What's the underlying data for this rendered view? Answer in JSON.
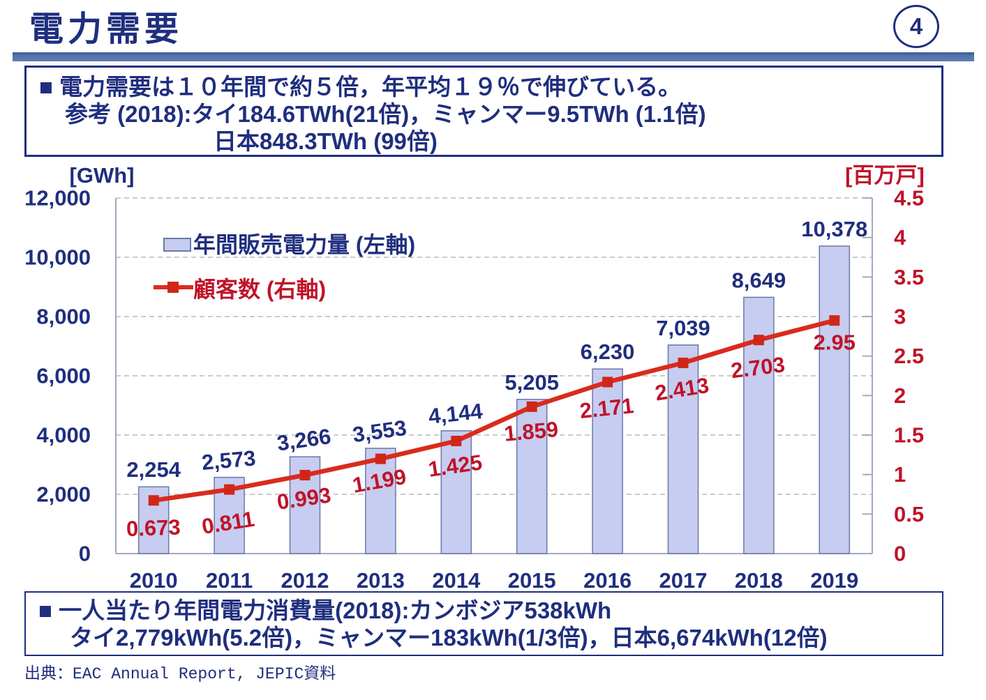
{
  "slide": {
    "title": "電力需要",
    "page_number": "4",
    "highlight_box": {
      "line1": "■ 電力需要は１０年間で約５倍，年平均１９％で伸びている。",
      "line2": "参考 (2018):タイ184.6TWh(21倍)，ミャンマー9.5TWh (1.1倍)",
      "line3": "日本848.3TWh (99倍)"
    },
    "footer_box": {
      "line1": "■ 一人当たり年間電力消費量(2018):カンボジア538kWh",
      "line2": "タイ2,779kWh(5.2倍)，ミャンマー183kWh(1/3倍)，日本6,674kWh(12倍)"
    },
    "source": "出典：EAC Annual Report, JEPIC資料"
  },
  "chart_data": {
    "type": "combo bar+line, dual axis",
    "categories": [
      "2010",
      "2011",
      "2012",
      "2013",
      "2014",
      "2015",
      "2016",
      "2017",
      "2018",
      "2019"
    ],
    "series": [
      {
        "name": "年間販売電力量 (左軸)",
        "type": "bar",
        "axis": "left",
        "values": [
          2254,
          2573,
          3266,
          3553,
          4144,
          5205,
          6230,
          7039,
          8649,
          10378
        ],
        "data_labels": [
          "2,254",
          "2,573",
          "3,266",
          "3,553",
          "4,144",
          "5,205",
          "6,230",
          "7,039",
          "8,649",
          "10,378"
        ]
      },
      {
        "name": "顧客数 (右軸)",
        "type": "line",
        "axis": "right",
        "values": [
          0.673,
          0.811,
          0.993,
          1.199,
          1.425,
          1.859,
          2.171,
          2.413,
          2.703,
          2.95
        ],
        "data_labels": [
          "0.673",
          "0.811",
          "0.993",
          "1.199",
          "1.425",
          "1.859",
          "2.171",
          "2.413",
          "2.703",
          "2.95"
        ]
      }
    ],
    "left_axis": {
      "unit": "[GWh]",
      "min": 0,
      "max": 12000,
      "tick_interval": 2000,
      "tick_labels": [
        "12,000",
        "10,000",
        "8,000",
        "6,000",
        "4,000",
        "2,000",
        "0"
      ]
    },
    "right_axis": {
      "unit": "[百万戸]",
      "min": 0,
      "max": 4.5,
      "tick_interval": 0.5,
      "tick_labels": [
        "4.5",
        "4",
        "3.5",
        "3",
        "2.5",
        "2",
        "1.5",
        "1",
        "0.5",
        "0"
      ]
    },
    "legend": {
      "position": "top-left inside plot",
      "entries": [
        "年間販売電力量 (左軸)",
        "顧客数 (右軸)"
      ]
    },
    "grid": {
      "horizontal": true,
      "style": "dashed"
    }
  },
  "colors": {
    "navy_text": "#1f2e7e",
    "red_label": "#c01328",
    "line_red": "#d92b1d",
    "marker_red": "#cf2619",
    "bar_fill": "#c6cdf0",
    "bar_border": "#6b77a8",
    "gridline": "#cbcbcb",
    "axis": "#a3a9c2",
    "divider_blue": "#5173ac"
  }
}
